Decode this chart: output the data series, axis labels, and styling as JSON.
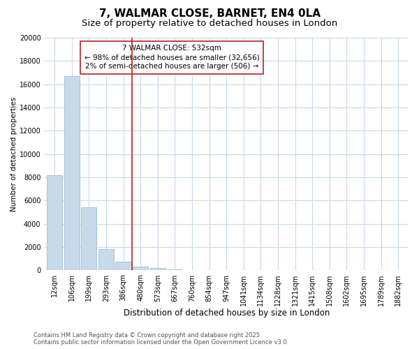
{
  "title": "7, WALMAR CLOSE, BARNET, EN4 0LA",
  "subtitle": "Size of property relative to detached houses in London",
  "xlabel": "Distribution of detached houses by size in London",
  "ylabel": "Number of detached properties",
  "bar_color": "#c8daea",
  "bar_edge_color": "#9bbdd4",
  "vline_color": "#bb2020",
  "vline_x_index": 5,
  "annotation_text": "7 WALMAR CLOSE: 532sqm\n← 98% of detached houses are smaller (32,656)\n2% of semi-detached houses are larger (506) →",
  "annotation_box_color": "white",
  "annotation_box_edge": "#bb2020",
  "categories": [
    "12sqm",
    "106sqm",
    "199sqm",
    "293sqm",
    "386sqm",
    "480sqm",
    "573sqm",
    "667sqm",
    "760sqm",
    "854sqm",
    "947sqm",
    "1041sqm",
    "1134sqm",
    "1228sqm",
    "1321sqm",
    "1415sqm",
    "1508sqm",
    "1602sqm",
    "1695sqm",
    "1789sqm",
    "1882sqm"
  ],
  "values": [
    8200,
    16700,
    5400,
    1850,
    750,
    320,
    190,
    100,
    50,
    0,
    0,
    0,
    0,
    0,
    0,
    0,
    0,
    0,
    0,
    0,
    0
  ],
  "ylim": [
    0,
    20000
  ],
  "yticks": [
    0,
    2000,
    4000,
    6000,
    8000,
    10000,
    12000,
    14000,
    16000,
    18000,
    20000
  ],
  "background_color": "#ffffff",
  "grid_color": "#c8d8ea",
  "footer_text": "Contains HM Land Registry data © Crown copyright and database right 2025.\nContains public sector information licensed under the Open Government Licence v3.0.",
  "title_fontsize": 11,
  "subtitle_fontsize": 9.5,
  "xlabel_fontsize": 8.5,
  "ylabel_fontsize": 7.5,
  "tick_fontsize": 7,
  "annotation_fontsize": 7.5,
  "footer_fontsize": 6
}
